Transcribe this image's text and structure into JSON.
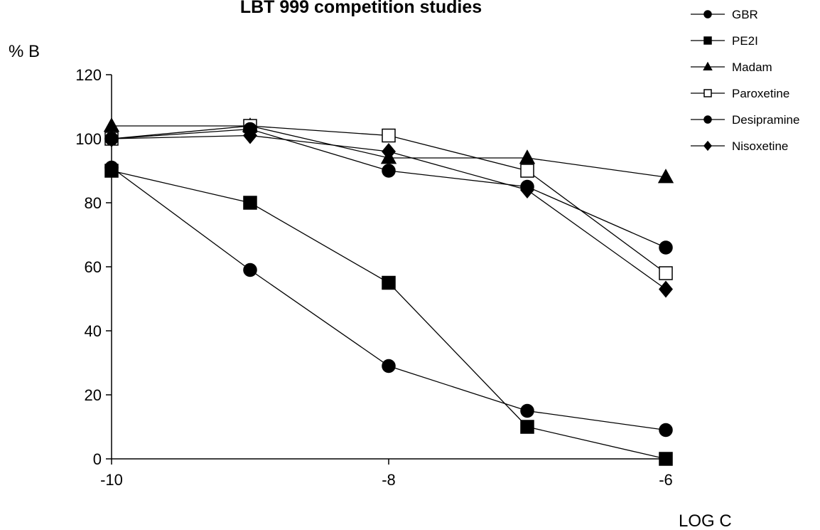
{
  "chart_data": {
    "type": "line",
    "title": "LBT 999 competition studies",
    "xlabel": "LOG C",
    "ylabel": "% B",
    "x": [
      -10,
      -9,
      -8,
      -7,
      -6
    ],
    "xticks": [
      -10,
      -8,
      -6
    ],
    "xlim": [
      -10,
      -6
    ],
    "yticks": [
      0,
      20,
      40,
      60,
      80,
      100,
      120
    ],
    "ylim": [
      0,
      120
    ],
    "grid": false,
    "legend_position": "top-right",
    "series": [
      {
        "name": "GBR",
        "marker": "circle",
        "filled": true,
        "color": "#000000",
        "values": [
          91,
          59,
          29,
          15,
          9
        ]
      },
      {
        "name": "PE2I",
        "marker": "square",
        "filled": true,
        "color": "#000000",
        "values": [
          90,
          80,
          55,
          10,
          0
        ]
      },
      {
        "name": "Madam",
        "marker": "triangle",
        "filled": true,
        "color": "#000000",
        "values": [
          104,
          104,
          94,
          94,
          88
        ]
      },
      {
        "name": "Paroxetine",
        "marker": "square",
        "filled": false,
        "color": "#000000",
        "values": [
          100,
          104,
          101,
          90,
          58
        ]
      },
      {
        "name": "Desipramine",
        "marker": "circle",
        "filled": true,
        "color": "#000000",
        "values": [
          100,
          103,
          90,
          85,
          66
        ]
      },
      {
        "name": "Nisoxetine",
        "marker": "diamond",
        "filled": true,
        "color": "#000000",
        "values": [
          100,
          101,
          96,
          84,
          53
        ]
      }
    ]
  }
}
